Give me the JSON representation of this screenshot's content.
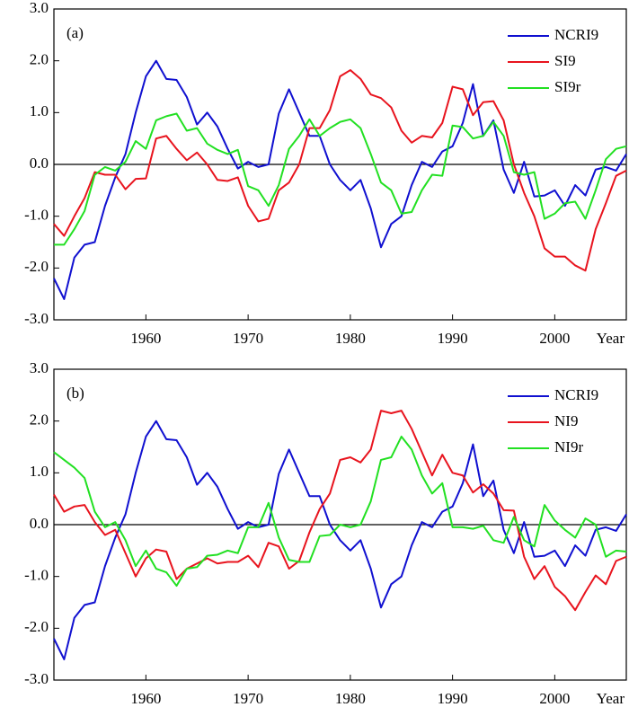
{
  "chart_data": [
    {
      "type": "line",
      "panel_label": "(a)",
      "x_label": "Year",
      "legend": "upper right",
      "xlim": [
        1951,
        2007
      ],
      "ylim": [
        -3,
        3
      ],
      "xticks": [
        1960,
        1970,
        1980,
        1990,
        2000
      ],
      "yticks": [
        {
          "value": -3,
          "label": "-3.0"
        },
        {
          "value": -2,
          "label": "-2.0"
        },
        {
          "value": -1,
          "label": "-1.0"
        },
        {
          "value": 0,
          "label": "0.0"
        },
        {
          "value": 1,
          "label": "1.0"
        },
        {
          "value": 2,
          "label": "2.0"
        },
        {
          "value": 3,
          "label": "3.0"
        }
      ],
      "x": [
        1951,
        1952,
        1953,
        1954,
        1955,
        1956,
        1957,
        1958,
        1959,
        1960,
        1961,
        1962,
        1963,
        1964,
        1965,
        1966,
        1967,
        1968,
        1969,
        1970,
        1971,
        1972,
        1973,
        1974,
        1975,
        1976,
        1977,
        1978,
        1979,
        1980,
        1981,
        1982,
        1983,
        1984,
        1985,
        1986,
        1987,
        1988,
        1989,
        1990,
        1991,
        1992,
        1993,
        1994,
        1995,
        1996,
        1997,
        1998,
        1999,
        2000,
        2001,
        2002,
        2003,
        2004,
        2005,
        2006,
        2007
      ],
      "series": [
        {
          "name": "NCRI9",
          "color": "#1010d0",
          "values": [
            -2.2,
            -2.6,
            -1.8,
            -1.55,
            -1.5,
            -0.8,
            -0.25,
            0.2,
            1.0,
            1.7,
            2.0,
            1.65,
            1.63,
            1.3,
            0.77,
            1.0,
            0.73,
            0.3,
            -0.08,
            0.05,
            -0.05,
            0.0,
            0.98,
            1.45,
            1.0,
            0.55,
            0.55,
            0.0,
            -0.3,
            -0.5,
            -0.3,
            -0.85,
            -1.6,
            -1.15,
            -1.0,
            -0.4,
            0.05,
            -0.05,
            0.25,
            0.35,
            0.8,
            1.55,
            0.55,
            0.85,
            -0.1,
            -0.55,
            0.05,
            -0.62,
            -0.6,
            -0.5,
            -0.8,
            -0.4,
            -0.6,
            -0.1,
            -0.05,
            -0.12,
            0.2
          ]
        },
        {
          "name": "SI9",
          "color": "#e8141e",
          "values": [
            -1.15,
            -1.38,
            -1.0,
            -0.65,
            -0.15,
            -0.2,
            -0.2,
            -0.48,
            -0.28,
            -0.27,
            0.5,
            0.55,
            0.3,
            0.08,
            0.23,
            0.0,
            -0.3,
            -0.32,
            -0.25,
            -0.8,
            -1.1,
            -1.05,
            -0.5,
            -0.35,
            0.0,
            0.7,
            0.7,
            1.05,
            1.7,
            1.82,
            1.65,
            1.35,
            1.28,
            1.1,
            0.65,
            0.42,
            0.55,
            0.52,
            0.8,
            1.5,
            1.45,
            0.95,
            1.2,
            1.22,
            0.85,
            0.0,
            -0.55,
            -1.0,
            -1.62,
            -1.78,
            -1.78,
            -1.95,
            -2.05,
            -1.25,
            -0.75,
            -0.22,
            -0.12
          ]
        },
        {
          "name": "SI9r",
          "color": "#22e022",
          "values": [
            -1.55,
            -1.55,
            -1.25,
            -0.9,
            -0.2,
            -0.05,
            -0.12,
            0.05,
            0.45,
            0.3,
            0.85,
            0.93,
            0.98,
            0.65,
            0.7,
            0.4,
            0.28,
            0.2,
            0.28,
            -0.42,
            -0.5,
            -0.8,
            -0.4,
            0.3,
            0.55,
            0.87,
            0.55,
            0.7,
            0.82,
            0.87,
            0.7,
            0.2,
            -0.35,
            -0.5,
            -0.95,
            -0.92,
            -0.5,
            -0.2,
            -0.22,
            0.75,
            0.72,
            0.5,
            0.55,
            0.82,
            0.55,
            -0.15,
            -0.2,
            -0.15,
            -1.05,
            -0.95,
            -0.75,
            -0.72,
            -1.05,
            -0.5,
            0.1,
            0.3,
            0.35
          ]
        }
      ]
    },
    {
      "type": "line",
      "panel_label": "(b)",
      "x_label": "Year",
      "legend": "upper right",
      "xlim": [
        1951,
        2007
      ],
      "ylim": [
        -3,
        3
      ],
      "xticks": [
        1960,
        1970,
        1980,
        1990,
        2000
      ],
      "yticks": [
        {
          "value": -3,
          "label": "-3.0"
        },
        {
          "value": -2,
          "label": "-2.0"
        },
        {
          "value": -1,
          "label": "-1.0"
        },
        {
          "value": 0,
          "label": "0.0"
        },
        {
          "value": 1,
          "label": "1.0"
        },
        {
          "value": 2,
          "label": "2.0"
        },
        {
          "value": 3,
          "label": "3.0"
        }
      ],
      "x": [
        1951,
        1952,
        1953,
        1954,
        1955,
        1956,
        1957,
        1958,
        1959,
        1960,
        1961,
        1962,
        1963,
        1964,
        1965,
        1966,
        1967,
        1968,
        1969,
        1970,
        1971,
        1972,
        1973,
        1974,
        1975,
        1976,
        1977,
        1978,
        1979,
        1980,
        1981,
        1982,
        1983,
        1984,
        1985,
        1986,
        1987,
        1988,
        1989,
        1990,
        1991,
        1992,
        1993,
        1994,
        1995,
        1996,
        1997,
        1998,
        1999,
        2000,
        2001,
        2002,
        2003,
        2004,
        2005,
        2006,
        2007
      ],
      "series": [
        {
          "name": "NCRI9",
          "color": "#1010d0",
          "values": [
            -2.2,
            -2.6,
            -1.8,
            -1.55,
            -1.5,
            -0.8,
            -0.25,
            0.2,
            1.0,
            1.7,
            2.0,
            1.65,
            1.63,
            1.3,
            0.77,
            1.0,
            0.73,
            0.3,
            -0.08,
            0.05,
            -0.05,
            0.0,
            0.98,
            1.45,
            1.0,
            0.55,
            0.55,
            0.0,
            -0.3,
            -0.5,
            -0.3,
            -0.85,
            -1.6,
            -1.15,
            -1.0,
            -0.4,
            0.05,
            -0.05,
            0.25,
            0.35,
            0.8,
            1.55,
            0.55,
            0.85,
            -0.1,
            -0.55,
            0.05,
            -0.62,
            -0.6,
            -0.5,
            -0.8,
            -0.4,
            -0.6,
            -0.1,
            -0.05,
            -0.12,
            0.2
          ]
        },
        {
          "name": "NI9",
          "color": "#e8141e",
          "values": [
            0.58,
            0.25,
            0.35,
            0.38,
            0.05,
            -0.2,
            -0.1,
            -0.55,
            -1.0,
            -0.65,
            -0.48,
            -0.52,
            -1.05,
            -0.85,
            -0.75,
            -0.65,
            -0.75,
            -0.72,
            -0.72,
            -0.6,
            -0.82,
            -0.35,
            -0.42,
            -0.85,
            -0.7,
            -0.15,
            0.3,
            0.6,
            1.25,
            1.3,
            1.2,
            1.45,
            2.2,
            2.15,
            2.2,
            1.85,
            1.4,
            0.95,
            1.35,
            1.0,
            0.95,
            0.62,
            0.78,
            0.6,
            0.28,
            0.27,
            -0.62,
            -1.05,
            -0.8,
            -1.2,
            -1.38,
            -1.65,
            -1.3,
            -0.98,
            -1.15,
            -0.7,
            -0.62
          ]
        },
        {
          "name": "NI9r",
          "color": "#22e022",
          "values": [
            1.4,
            1.25,
            1.1,
            0.9,
            0.25,
            -0.05,
            0.05,
            -0.3,
            -0.8,
            -0.5,
            -0.85,
            -0.92,
            -1.18,
            -0.85,
            -0.82,
            -0.6,
            -0.58,
            -0.5,
            -0.55,
            -0.05,
            -0.05,
            0.42,
            -0.25,
            -0.68,
            -0.72,
            -0.72,
            -0.22,
            -0.2,
            0.0,
            -0.05,
            0.0,
            0.45,
            1.25,
            1.3,
            1.7,
            1.45,
            0.95,
            0.6,
            0.8,
            -0.05,
            -0.05,
            -0.08,
            -0.02,
            -0.3,
            -0.35,
            0.15,
            -0.3,
            -0.42,
            0.38,
            0.08,
            -0.1,
            -0.25,
            0.12,
            0.0,
            -0.62,
            -0.5,
            -0.52
          ]
        }
      ]
    }
  ]
}
